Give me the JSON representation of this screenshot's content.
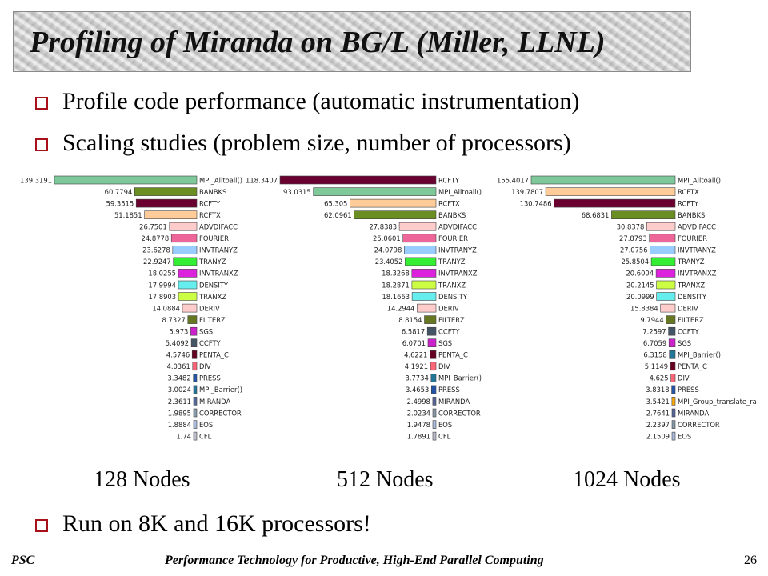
{
  "title": "Profiling of Miranda on BG/L (Miller, LLNL)",
  "bullets": [
    "Profile code performance (automatic instrumentation)",
    "Scaling studies (problem size, number of processors)"
  ],
  "final_bullet": "Run on 8K and 16K processors!",
  "footer": {
    "left": "PSC",
    "center": "Performance Technology for Productive, High-End Parallel Computing",
    "page": "26"
  },
  "colors": {
    "MPI_Alltoall()": "#7fc89a",
    "BANBKS": "#6b8e23",
    "RCFTY": "#6a0030",
    "RCFTX": "#ffcc99",
    "ADVDIFACC": "#ffcccc",
    "FOURIER": "#ee6699",
    "INVTRANYZ": "#99ccff",
    "TRANYZ": "#33ee33",
    "INVTRANXZ": "#dd22dd",
    "DENSITY": "#66eeee",
    "TRANXZ": "#ccff44",
    "DERIV": "#ffcccc",
    "FILTERZ": "#667722",
    "SGS": "#cc22cc",
    "CCFTY": "#445566",
    "PENTA_C": "#660022",
    "DIV": "#ff6677",
    "PRESS": "#2255aa",
    "MPI_Barrier()": "#227799",
    "MIRANDA": "#556699",
    "CORRECTOR": "#8899aa",
    "EOS": "#aabbdd",
    "CFL": "#bbbbcc",
    "MPI_Group_translate_ra": "#ffaa00"
  },
  "chart_data": [
    {
      "type": "bar",
      "title": "128 Nodes",
      "max": 139.3191,
      "categories": [
        "MPI_Alltoall()",
        "BANBKS",
        "RCFTY",
        "RCFTX",
        "ADVDIFACC",
        "FOURIER",
        "INVTRANYZ",
        "TRANYZ",
        "INVTRANXZ",
        "DENSITY",
        "TRANXZ",
        "DERIV",
        "FILTERZ",
        "SGS",
        "CCFTY",
        "PENTA_C",
        "DIV",
        "PRESS",
        "MPI_Barrier()",
        "MIRANDA",
        "CORRECTOR",
        "EOS",
        "CFL"
      ],
      "values": [
        139.3191,
        60.7794,
        59.3515,
        51.1851,
        26.7501,
        24.8778,
        23.6278,
        22.9247,
        18.0255,
        17.9994,
        17.8903,
        14.0884,
        8.7327,
        5.973,
        5.4092,
        4.5746,
        4.0361,
        3.3482,
        3.0024,
        2.3611,
        1.9895,
        1.8884,
        1.74
      ],
      "labels": [
        "139.3191",
        "60.7794",
        "59.3515",
        "51.1851",
        "26.7501",
        "24.8778",
        "23.6278",
        "22.9247",
        "18.0255",
        "17.9994",
        "17.8903",
        "14.0884",
        "8.7327",
        "5.973",
        "5.4092",
        "4.5746",
        "4.0361",
        "3.3482",
        "3.0024",
        "2.3611",
        "1.9895",
        "1.8884",
        "1.74"
      ]
    },
    {
      "type": "bar",
      "title": "512 Nodes",
      "max": 118.3407,
      "categories": [
        "RCFTY",
        "MPI_Alltoall()",
        "RCFTX",
        "BANBKS",
        "ADVDIFACC",
        "FOURIER",
        "INVTRANYZ",
        "TRANYZ",
        "INVTRANXZ",
        "TRANXZ",
        "DENSITY",
        "DERIV",
        "FILTERZ",
        "CCFTY",
        "SGS",
        "PENTA_C",
        "DIV",
        "MPI_Barrier()",
        "PRESS",
        "MIRANDA",
        "CORRECTOR",
        "EOS",
        "CFL"
      ],
      "values": [
        118.3407,
        93.0315,
        65.305,
        62.0961,
        27.8383,
        25.0601,
        24.0798,
        23.4052,
        18.3268,
        18.2871,
        18.1663,
        14.2944,
        8.8154,
        6.5817,
        6.0701,
        4.6221,
        4.1921,
        3.7734,
        3.4653,
        2.4998,
        2.0234,
        1.9478,
        1.7891
      ],
      "labels": [
        "118.3407",
        "93.0315",
        "65.305",
        "62.0961",
        "27.8383",
        "25.0601",
        "24.0798",
        "23.4052",
        "18.3268",
        "18.2871",
        "18.1663",
        "14.2944",
        "8.8154",
        "6.5817",
        "6.0701",
        "4.6221",
        "4.1921",
        "3.7734",
        "3.4653",
        "2.4998",
        "2.0234",
        "1.9478",
        "1.7891"
      ]
    },
    {
      "type": "bar",
      "title": "1024 Nodes",
      "max": 155.4017,
      "categories": [
        "MPI_Alltoall()",
        "RCFTX",
        "RCFTY",
        "BANBKS",
        "ADVDIFACC",
        "FOURIER",
        "INVTRANYZ",
        "TRANYZ",
        "INVTRANXZ",
        "TRANXZ",
        "DENSITY",
        "DERIV",
        "FILTERZ",
        "CCFTY",
        "SGS",
        "MPI_Barrier()",
        "PENTA_C",
        "DIV",
        "PRESS",
        "MPI_Group_translate_ra",
        "MIRANDA",
        "CORRECTOR",
        "EOS"
      ],
      "values": [
        155.4017,
        139.7807,
        130.7486,
        68.6831,
        30.8378,
        27.8793,
        27.0756,
        25.8504,
        20.6004,
        20.2145,
        20.0999,
        15.8384,
        9.7944,
        7.2597,
        6.7059,
        6.3158,
        5.1149,
        4.625,
        3.8318,
        3.5421,
        2.7641,
        2.2397,
        2.1509
      ],
      "labels": [
        "155.4017",
        "139.7807",
        "130.7486",
        "68.6831",
        "30.8378",
        "27.8793",
        "27.0756",
        "25.8504",
        "20.6004",
        "20.2145",
        "20.0999",
        "15.8384",
        "9.7944",
        "7.2597",
        "6.7059",
        "6.3158",
        "5.1149",
        "4.625",
        "3.8318",
        "3.5421",
        "2.7641",
        "2.2397",
        "2.1509"
      ]
    }
  ]
}
